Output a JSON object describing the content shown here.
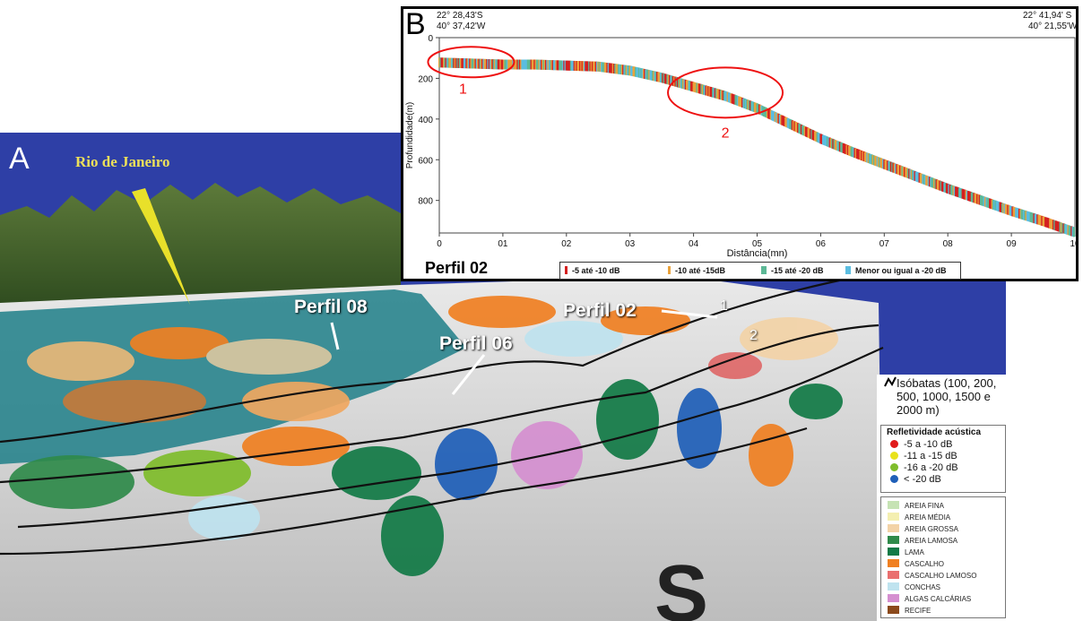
{
  "panel_a": {
    "letter": "A",
    "city_label": "Rio de Janeiro",
    "profiles": [
      "Perfil 08",
      "Perfil 06",
      "Perfil 02"
    ],
    "markers": [
      "1",
      "2"
    ]
  },
  "legend": {
    "isobaths": "Isóbatas (100, 200, 500, 1000, 1500 e 2000 m)",
    "reflectivity_title": "Refletividade acústica",
    "reflectivity_items": [
      {
        "label": "-5 a -10 dB",
        "color": "#e01b1b"
      },
      {
        "label": "-11 a -15 dB",
        "color": "#e8e21c"
      },
      {
        "label": "-16 a -20 dB",
        "color": "#7fbd2b"
      },
      {
        "label": "< -20 dB",
        "color": "#1f5fb8"
      }
    ],
    "sediment_items": [
      {
        "label": "AREIA FINA",
        "color": "#c6e3b4"
      },
      {
        "label": "AREIA MÉDIA",
        "color": "#f4efb0"
      },
      {
        "label": "AREIA GROSSA",
        "color": "#f3d3a7"
      },
      {
        "label": "AREIA LAMOSA",
        "color": "#2f8a4a"
      },
      {
        "label": "LAMA",
        "color": "#127a46"
      },
      {
        "label": "CASCALHO",
        "color": "#f08022"
      },
      {
        "label": "CASCALHO LAMOSO",
        "color": "#ea6f6f"
      },
      {
        "label": "CONCHAS",
        "color": "#bfe3ef"
      },
      {
        "label": "ALGAS CALCÁRIAS",
        "color": "#d58fd0"
      },
      {
        "label": "RECIFE",
        "color": "#8b4a1c"
      }
    ]
  },
  "panel_b": {
    "letter": "B",
    "coord_left": [
      "22° 28,43'S",
      "40° 37,42'W"
    ],
    "coord_right": [
      "22° 41,94' S",
      "40° 21,55'W"
    ],
    "title": "Perfil 02",
    "legend": [
      {
        "label": "-5 até -10 dB",
        "color": "#d42020"
      },
      {
        "label": "-10 até -15dB",
        "color": "#e9a23b"
      },
      {
        "label": "-15 até -20 dB",
        "color": "#5cb896"
      },
      {
        "label": "Menor ou igual a -20 dB",
        "color": "#5bbde0"
      }
    ],
    "annotations": [
      "1",
      "2"
    ]
  },
  "chart_data": {
    "type": "scatter",
    "title": "Perfil 02",
    "xlabel": "Distância(mn)",
    "ylabel": "Profundidade(m)",
    "xlim": [
      0,
      10
    ],
    "ylim": [
      0,
      960
    ],
    "y_inverted": true,
    "x_tick_labels": [
      "0",
      "01",
      "02",
      "03",
      "04",
      "05",
      "06",
      "07",
      "08",
      "09",
      "10"
    ],
    "y_tick_labels": [
      "0",
      "200",
      "400",
      "600",
      "800"
    ],
    "y_ticks": [
      0,
      200,
      400,
      600,
      800
    ],
    "series": [
      {
        "name": "Perfil 02",
        "points": [
          {
            "x": 0.0,
            "y": 120
          },
          {
            "x": 0.5,
            "y": 125
          },
          {
            "x": 1.0,
            "y": 130
          },
          {
            "x": 1.5,
            "y": 130
          },
          {
            "x": 2.0,
            "y": 135
          },
          {
            "x": 2.5,
            "y": 140
          },
          {
            "x": 3.0,
            "y": 160
          },
          {
            "x": 3.5,
            "y": 195
          },
          {
            "x": 4.0,
            "y": 240
          },
          {
            "x": 4.5,
            "y": 285
          },
          {
            "x": 5.0,
            "y": 345
          },
          {
            "x": 5.5,
            "y": 420
          },
          {
            "x": 6.0,
            "y": 495
          },
          {
            "x": 6.5,
            "y": 560
          },
          {
            "x": 7.0,
            "y": 620
          },
          {
            "x": 7.5,
            "y": 680
          },
          {
            "x": 8.0,
            "y": 740
          },
          {
            "x": 8.5,
            "y": 795
          },
          {
            "x": 9.0,
            "y": 850
          },
          {
            "x": 9.5,
            "y": 900
          },
          {
            "x": 10.0,
            "y": 955
          }
        ]
      }
    ],
    "circled_regions": [
      {
        "label": "1",
        "x": 0.5,
        "y": 120
      },
      {
        "label": "2",
        "x": 4.5,
        "y": 270
      }
    ]
  }
}
